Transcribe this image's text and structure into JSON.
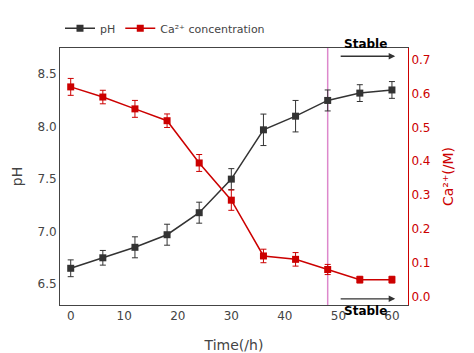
{
  "chart_data": {
    "type": "line",
    "x": [
      0,
      6,
      12,
      18,
      24,
      30,
      36,
      42,
      48,
      54,
      60
    ],
    "series": [
      {
        "name": "pH",
        "color": "#333333",
        "marker": "square",
        "line_style": "solid",
        "values": [
          6.65,
          6.75,
          6.85,
          6.97,
          7.18,
          7.5,
          7.97,
          8.1,
          8.25,
          8.32,
          8.35
        ],
        "errors": [
          0.08,
          0.07,
          0.1,
          0.1,
          0.1,
          0.1,
          0.15,
          0.15,
          0.1,
          0.08,
          0.08
        ]
      },
      {
        "name": "Ca²⁺ concentration",
        "color": "#cc0000",
        "marker": "square",
        "line_style": "solid",
        "axis": "y2",
        "values": [
          0.62,
          0.59,
          0.555,
          0.52,
          0.395,
          0.285,
          0.12,
          0.11,
          0.08,
          0.05,
          0.05
        ],
        "errors": [
          0.025,
          0.02,
          0.025,
          0.02,
          0.025,
          0.03,
          0.02,
          0.02,
          0.015,
          0.01,
          0.01
        ]
      }
    ],
    "xlabel": "Time(/h)",
    "ylabel": "pH",
    "y2label": "Ca²⁺(/M)",
    "xlim": [
      -2,
      63
    ],
    "ylim": [
      6.3,
      8.75
    ],
    "y2lim": [
      -0.025,
      0.735
    ],
    "xticks": [
      0,
      10,
      20,
      30,
      40,
      50,
      60
    ],
    "yticks": [
      6.5,
      {
        "value": 7.0,
        "label": "7.0"
      },
      7.5,
      {
        "value": 8.0,
        "label": "8.0"
      },
      8.5
    ],
    "y2ticks": [
      {
        "value": 0.0,
        "label": "0.0"
      },
      0.1,
      0.2,
      0.3,
      0.4,
      0.5,
      0.6,
      0.7
    ],
    "vline": {
      "x": 48,
      "color": "#dd88cc"
    },
    "annotations": [
      {
        "text": "Stable",
        "x": 55,
        "y": 8.7
      },
      {
        "text": "Stable",
        "x": 55,
        "y": 6.33
      }
    ],
    "grid": false,
    "legend": "upper left"
  }
}
